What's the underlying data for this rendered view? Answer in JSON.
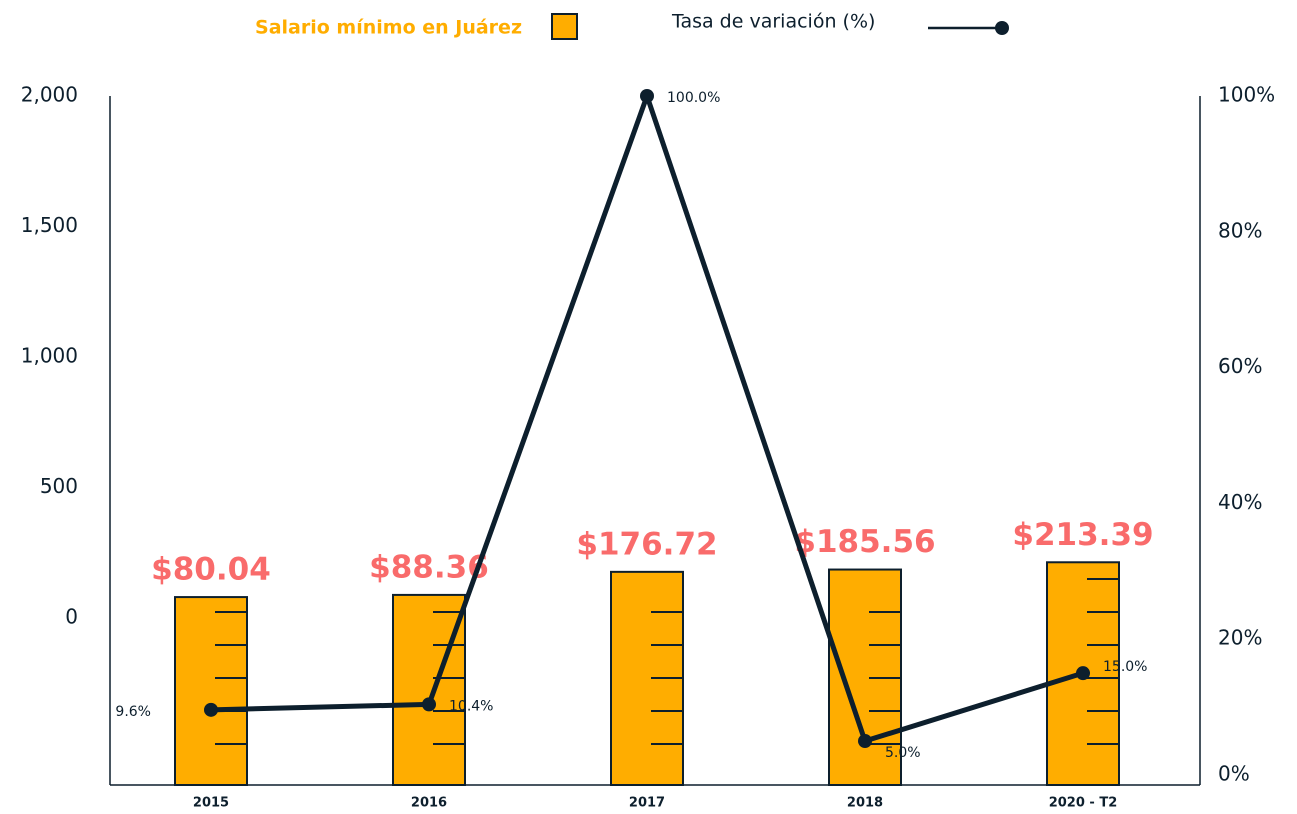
{
  "chart_data": {
    "type": "bar",
    "categories": [
      "2015",
      "2016",
      "2017",
      "2018",
      "2020 - T2"
    ],
    "series": [
      {
        "name": "Salario mínimo en Juárez",
        "color": "#ffad00",
        "type": "bar",
        "values": [
          80.04,
          88.36,
          176.72,
          185.56,
          213.39
        ],
        "value_labels": [
          "$80.04",
          "$88.36",
          "$176.72",
          "$185.56",
          "$213.39"
        ]
      },
      {
        "name": "Tasa de variación (%)",
        "color": "#0d1f2d",
        "type": "line",
        "axis": "y2",
        "values": [
          9.6,
          10.4,
          100.0,
          5.0,
          15.0
        ],
        "value_labels": [
          "9.6%",
          "10.4%",
          "100.0%",
          "5.0%",
          "15.0%"
        ]
      }
    ],
    "ylim": [
      -640,
      2000
    ],
    "yticks": [
      {
        "value": 2000,
        "label": "2,000"
      },
      {
        "value": 1500,
        "label": "1,500"
      },
      {
        "value": 1000,
        "label": "1,000"
      },
      500,
      0
    ],
    "y2lim": [
      0,
      100
    ],
    "y2ticks": [
      {
        "value": 0,
        "label": "0%"
      },
      {
        "value": 20,
        "label": "20%"
      },
      {
        "value": 40,
        "label": "40%"
      },
      {
        "value": 60,
        "label": "60%"
      },
      {
        "value": 80,
        "label": "80%"
      },
      {
        "value": 100,
        "label": "100%"
      }
    ]
  }
}
